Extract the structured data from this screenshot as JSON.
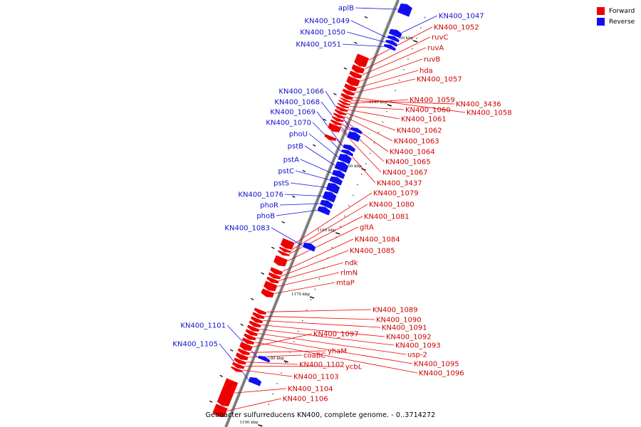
{
  "legend": {
    "forward": {
      "label": "Forward",
      "color": "#ee0000"
    },
    "reverse": {
      "label": "Reverse",
      "color": "#1010ee"
    }
  },
  "caption": "Geobacter sulfurreducens KN400, complete genome. - 0..3714272",
  "ticks": [
    {
      "label": "1130 kbp",
      "t": 0.07
    },
    {
      "label": "1140 kbp",
      "t": 0.22
    },
    {
      "label": "1150 kbp",
      "t": 0.37
    },
    {
      "label": "1160 kbp",
      "t": 0.52
    },
    {
      "label": "1170 kbp",
      "t": 0.67
    },
    {
      "label": "1180 kbp",
      "t": 0.82
    },
    {
      "label": "1190 kbp",
      "t": 0.97
    }
  ],
  "forward_genes": [
    {
      "name": "KN400_1052",
      "t1": 0.14,
      "t2": 0.165
    },
    {
      "name": "ruvC",
      "t1": 0.165,
      "t2": 0.18
    },
    {
      "name": "ruvA",
      "t1": 0.18,
      "t2": 0.192
    },
    {
      "name": "ruvB",
      "t1": 0.192,
      "t2": 0.21
    },
    {
      "name": "hda",
      "t1": 0.21,
      "t2": 0.222
    },
    {
      "name": "KN400_1057",
      "t1": 0.222,
      "t2": 0.232
    },
    {
      "name": "KN400_1058",
      "t1": 0.232,
      "t2": 0.242
    },
    {
      "name": "KN400_3436",
      "t1": 0.242,
      "t2": 0.248
    },
    {
      "name": "KN400_1059",
      "t1": 0.248,
      "t2": 0.255
    },
    {
      "name": "KN400_1060",
      "t1": 0.255,
      "t2": 0.262
    },
    {
      "name": "KN400_1061",
      "t1": 0.262,
      "t2": 0.27
    },
    {
      "name": "KN400_1062",
      "t1": 0.27,
      "t2": 0.278
    },
    {
      "name": "KN400_1063",
      "t1": 0.278,
      "t2": 0.286
    },
    {
      "name": "KN400_1064",
      "t1": 0.286,
      "t2": 0.294
    },
    {
      "name": "KN400_1065",
      "t1": 0.294,
      "t2": 0.302
    },
    {
      "name": "KN400_1067",
      "t1": 0.302,
      "t2": 0.318
    },
    {
      "name": "KN400_3437",
      "t1": 0.328,
      "t2": 0.338
    },
    {
      "name": "KN400_1079",
      "t1": 0.572,
      "t2": 0.592
    },
    {
      "name": "KN400_1080",
      "t1": 0.592,
      "t2": 0.6
    },
    {
      "name": "KN400_1081",
      "t1": 0.6,
      "t2": 0.608
    },
    {
      "name": "gltA",
      "t1": 0.612,
      "t2": 0.632
    },
    {
      "name": "KN400_1084",
      "t1": 0.64,
      "t2": 0.652
    },
    {
      "name": "KN400_1085",
      "t1": 0.652,
      "t2": 0.662
    },
    {
      "name": "ndk",
      "t1": 0.662,
      "t2": 0.672
    },
    {
      "name": "rlmN",
      "t1": 0.672,
      "t2": 0.69
    },
    {
      "name": "mtaP",
      "t1": 0.69,
      "t2": 0.705
    },
    {
      "name": "KN400_1089",
      "t1": 0.735,
      "t2": 0.745
    },
    {
      "name": "KN400_1090",
      "t1": 0.745,
      "t2": 0.755
    },
    {
      "name": "KN400_1091",
      "t1": 0.755,
      "t2": 0.765
    },
    {
      "name": "KN400_1092",
      "t1": 0.765,
      "t2": 0.775
    },
    {
      "name": "KN400_1093",
      "t1": 0.775,
      "t2": 0.785
    },
    {
      "name": "usp-2",
      "t1": 0.785,
      "t2": 0.795
    },
    {
      "name": "KN400_1095",
      "t1": 0.795,
      "t2": 0.805
    },
    {
      "name": "KN400_1096",
      "t1": 0.805,
      "t2": 0.815
    },
    {
      "name": "KN400_1097",
      "t1": 0.815,
      "t2": 0.83
    },
    {
      "name": "yhaM",
      "t1": 0.83,
      "t2": 0.84
    },
    {
      "name": "coaBC",
      "t1": 0.84,
      "t2": 0.852
    },
    {
      "name": "KN400_1102",
      "t1": 0.852,
      "t2": 0.862
    },
    {
      "name": "ycbL",
      "t1": 0.862,
      "t2": 0.872
    },
    {
      "name": "KN400_1103",
      "t1": 0.872,
      "t2": 0.88
    },
    {
      "name": "KN400_1104",
      "t1": 0.9,
      "t2": 0.96
    },
    {
      "name": "KN400_1106",
      "t1": 0.96,
      "t2": 0.985
    }
  ],
  "reverse_genes": [
    {
      "name": "aplB",
      "t1": 0.0,
      "t2": 0.025
    },
    {
      "name": "KN400_1047",
      "t1": 0.06,
      "t2": 0.075
    },
    {
      "name": "KN400_1049",
      "t1": 0.075,
      "t2": 0.085
    },
    {
      "name": "KN400_1050",
      "t1": 0.085,
      "t2": 0.095
    },
    {
      "name": "KN400_1051",
      "t1": 0.095,
      "t2": 0.105
    },
    {
      "name": "KN400_1066",
      "t1": 0.29,
      "t2": 0.3
    },
    {
      "name": "KN400_1068",
      "t1": 0.3,
      "t2": 0.318
    },
    {
      "name": "KN400_1069",
      "t1": 0.33,
      "t2": 0.342
    },
    {
      "name": "KN400_1070",
      "t1": 0.342,
      "t2": 0.352
    },
    {
      "name": "phoU",
      "t1": 0.352,
      "t2": 0.37
    },
    {
      "name": "pstB",
      "t1": 0.37,
      "t2": 0.39
    },
    {
      "name": "pstA",
      "t1": 0.39,
      "t2": 0.405
    },
    {
      "name": "pstC",
      "t1": 0.405,
      "t2": 0.42
    },
    {
      "name": "pstS",
      "t1": 0.42,
      "t2": 0.44
    },
    {
      "name": "KN400_1076",
      "t1": 0.44,
      "t2": 0.46
    },
    {
      "name": "phoR",
      "t1": 0.46,
      "t2": 0.475
    },
    {
      "name": "phoB",
      "t1": 0.475,
      "t2": 0.49
    },
    {
      "name": "KN400_1083",
      "t1": 0.56,
      "t2": 0.575
    },
    {
      "name": "KN400_1101",
      "t1": 0.825,
      "t2": 0.835
    },
    {
      "name": "KN400_1105",
      "t1": 0.875,
      "t2": 0.89
    }
  ]
}
